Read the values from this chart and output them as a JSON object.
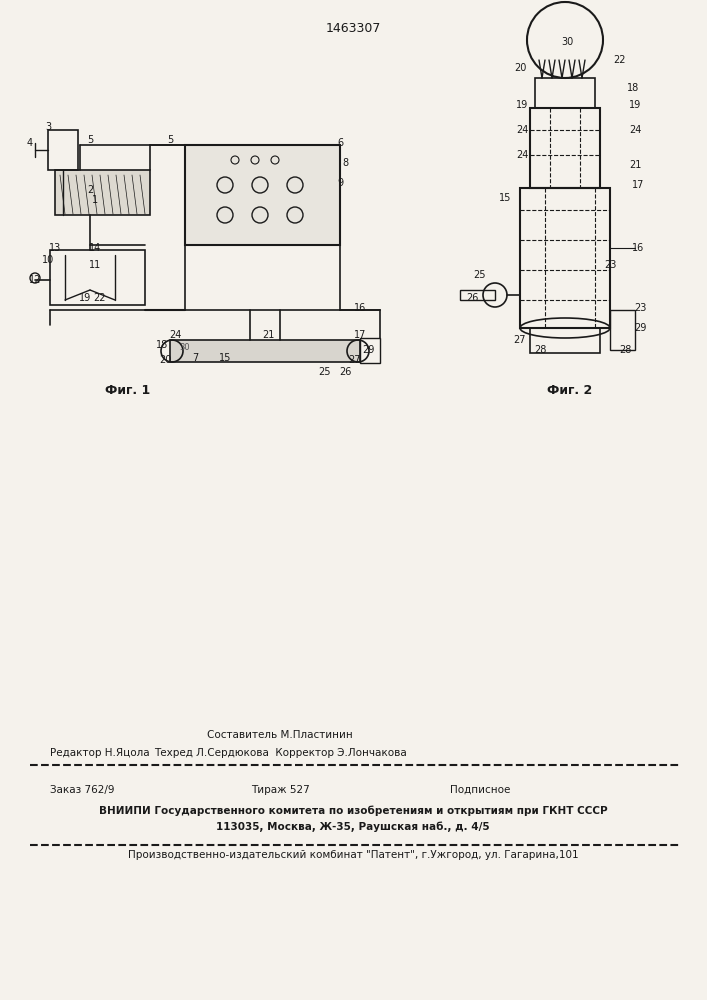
{
  "patent_number": "1463307",
  "bg_color": "#f5f2ec",
  "line_color": "#1a1a1a",
  "fig1_caption": "Фиг. 1",
  "fig2_caption": "Фиг. 2",
  "footer_line1_left": "Составитель М.Пластинин",
  "footer_line2_left": "Редактор Н.Яцола",
  "footer_line2_mid": "Техред Л.Сердюкова  Корректор Э.Лончакова",
  "footer_order": "Заказ 762/9",
  "footer_edition": "Тираж 527",
  "footer_subscription": "Подписное",
  "footer_vnipi": "ВНИИПИ Государственного комитета по изобретениям и открытиям при ГКНТ СССР",
  "footer_address": "113035, Москва, Ж-35, Раушская наб., д. 4/5",
  "footer_production": "Производственно-издательский комбинат \"Патент\", г.Ужгород, ул. Гагарина,101"
}
